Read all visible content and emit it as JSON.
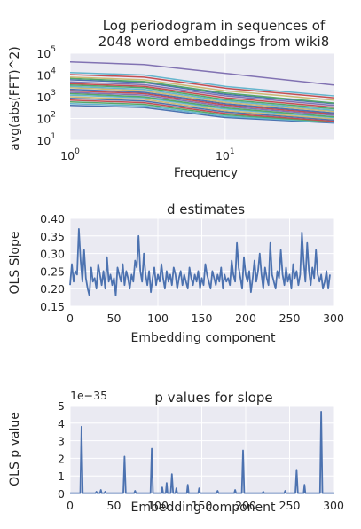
{
  "colors": {
    "panel_bg": "#eaeaf2",
    "grid": "#ffffff",
    "main_line": "#4c72b0",
    "palette": [
      "#4c72b0",
      "#55a868",
      "#c44e52",
      "#8172b2",
      "#ccb974",
      "#64b5cd"
    ]
  },
  "chart_data": [
    {
      "type": "line",
      "title_lines": [
        "Log periodogram in sequences of",
        "2048 word embeddings from wiki8"
      ],
      "xlabel": "Frequency",
      "ylabel": "avg(abs(FFT)^2)",
      "xscale": "log",
      "yscale": "log",
      "xlim": [
        1,
        50
      ],
      "ylim": [
        10,
        100000
      ],
      "xtick_labels": [
        {
          "mantissa": "10",
          "exp": "0",
          "value": 1
        },
        {
          "mantissa": "10",
          "exp": "1",
          "value": 10
        }
      ],
      "ytick_labels": [
        {
          "mantissa": "10",
          "exp": "1",
          "value": 10
        },
        {
          "mantissa": "10",
          "exp": "2",
          "value": 100
        },
        {
          "mantissa": "10",
          "exp": "3",
          "value": 1000
        },
        {
          "mantissa": "10",
          "exp": "4",
          "value": 10000
        },
        {
          "mantissa": "10",
          "exp": "5",
          "value": 100000
        }
      ],
      "grid": true,
      "x": [
        1,
        3,
        10,
        50
      ],
      "series": [
        {
          "color": "#8172b2",
          "values": [
            40000,
            30000,
            12000,
            3500
          ]
        },
        {
          "color": "#64b5cd",
          "values": [
            13000,
            10000,
            3000,
            1100
          ]
        },
        {
          "color": "#c44e52",
          "values": [
            10500,
            8000,
            2500,
            900
          ]
        },
        {
          "color": "#ccb974",
          "values": [
            8000,
            6000,
            1900,
            700
          ]
        },
        {
          "color": "#55a868",
          "values": [
            7000,
            5000,
            1500,
            520
          ]
        },
        {
          "color": "#4c72b0",
          "values": [
            6000,
            4500,
            1300,
            480
          ]
        },
        {
          "color": "#8172b2",
          "values": [
            4800,
            3600,
            1100,
            400
          ]
        },
        {
          "color": "#c44e52",
          "values": [
            4000,
            3000,
            900,
            330
          ]
        },
        {
          "color": "#55a868",
          "values": [
            3500,
            2600,
            750,
            280
          ]
        },
        {
          "color": "#64b5cd",
          "values": [
            3000,
            2200,
            650,
            240
          ]
        },
        {
          "color": "#ccb974",
          "values": [
            2600,
            1900,
            560,
            210
          ]
        },
        {
          "color": "#4c72b0",
          "values": [
            2200,
            1600,
            480,
            180
          ]
        },
        {
          "color": "#c44e52",
          "values": [
            1900,
            1400,
            420,
            160
          ]
        },
        {
          "color": "#8172b2",
          "values": [
            1600,
            1200,
            360,
            140
          ]
        },
        {
          "color": "#55a868",
          "values": [
            1400,
            1000,
            310,
            120
          ]
        },
        {
          "color": "#64b5cd",
          "values": [
            1200,
            900,
            270,
            110
          ]
        },
        {
          "color": "#ccb974",
          "values": [
            1000,
            760,
            230,
            95
          ]
        },
        {
          "color": "#4c72b0",
          "values": [
            850,
            640,
            200,
            85
          ]
        },
        {
          "color": "#c44e52",
          "values": [
            700,
            540,
            170,
            75
          ]
        },
        {
          "color": "#55a868",
          "values": [
            580,
            450,
            145,
            70
          ]
        },
        {
          "color": "#64b5cd",
          "values": [
            480,
            380,
            125,
            66
          ]
        },
        {
          "color": "#4c72b0",
          "values": [
            400,
            320,
            110,
            62
          ]
        }
      ]
    },
    {
      "type": "line",
      "title": "d estimates",
      "xlabel": "Embedding component",
      "ylabel": "OLS Slope",
      "xlim": [
        0,
        300
      ],
      "ylim": [
        0.15,
        0.4
      ],
      "xtick_labels": [
        "0",
        "50",
        "100",
        "150",
        "200",
        "250",
        "300"
      ],
      "ytick_labels": [
        "0.15",
        "0.20",
        "0.25",
        "0.30",
        "0.35",
        "0.40"
      ],
      "grid": true,
      "x_start": 0,
      "x_step": 2,
      "values": [
        0.21,
        0.27,
        0.22,
        0.25,
        0.24,
        0.37,
        0.28,
        0.22,
        0.31,
        0.23,
        0.2,
        0.18,
        0.26,
        0.22,
        0.23,
        0.2,
        0.27,
        0.24,
        0.21,
        0.25,
        0.2,
        0.29,
        0.22,
        0.24,
        0.21,
        0.23,
        0.18,
        0.26,
        0.24,
        0.22,
        0.27,
        0.21,
        0.25,
        0.23,
        0.2,
        0.24,
        0.22,
        0.28,
        0.26,
        0.35,
        0.25,
        0.22,
        0.3,
        0.24,
        0.21,
        0.25,
        0.19,
        0.23,
        0.26,
        0.21,
        0.24,
        0.22,
        0.27,
        0.23,
        0.2,
        0.25,
        0.22,
        0.24,
        0.21,
        0.26,
        0.24,
        0.2,
        0.23,
        0.25,
        0.21,
        0.24,
        0.22,
        0.2,
        0.26,
        0.23,
        0.21,
        0.24,
        0.22,
        0.25,
        0.2,
        0.23,
        0.21,
        0.27,
        0.24,
        0.22,
        0.2,
        0.25,
        0.23,
        0.21,
        0.24,
        0.22,
        0.26,
        0.2,
        0.24,
        0.22,
        0.23,
        0.21,
        0.28,
        0.24,
        0.22,
        0.33,
        0.26,
        0.23,
        0.2,
        0.29,
        0.24,
        0.22,
        0.25,
        0.19,
        0.23,
        0.28,
        0.22,
        0.25,
        0.3,
        0.24,
        0.2,
        0.26,
        0.23,
        0.21,
        0.33,
        0.24,
        0.22,
        0.2,
        0.25,
        0.23,
        0.31,
        0.24,
        0.21,
        0.26,
        0.22,
        0.24,
        0.2,
        0.27,
        0.23,
        0.25,
        0.21,
        0.24,
        0.36,
        0.28,
        0.22,
        0.33,
        0.25,
        0.21,
        0.26,
        0.23,
        0.31,
        0.24,
        0.22,
        0.24,
        0.2,
        0.22,
        0.25,
        0.2,
        0.24
      ]
    },
    {
      "type": "line",
      "title": "p values for slope",
      "xlabel": "Embedding component",
      "ylabel": "OLS p value",
      "offset_text": "1e−35",
      "xlim": [
        0,
        300
      ],
      "ylim": [
        0,
        5
      ],
      "xtick_labels": [
        "0",
        "50",
        "100",
        "150",
        "200",
        "250",
        "300"
      ],
      "ytick_labels": [
        "0",
        "1",
        "2",
        "3",
        "4",
        "5"
      ],
      "grid": true,
      "baseline": 0.02,
      "peaks": [
        {
          "x": 13,
          "value": 3.8
        },
        {
          "x": 30,
          "value": 0.1
        },
        {
          "x": 35,
          "value": 0.2
        },
        {
          "x": 40,
          "value": 0.1
        },
        {
          "x": 62,
          "value": 2.1
        },
        {
          "x": 74,
          "value": 0.15
        },
        {
          "x": 93,
          "value": 2.55
        },
        {
          "x": 105,
          "value": 0.35
        },
        {
          "x": 110,
          "value": 0.6
        },
        {
          "x": 116,
          "value": 1.1
        },
        {
          "x": 121,
          "value": 0.3
        },
        {
          "x": 134,
          "value": 0.5
        },
        {
          "x": 147,
          "value": 0.3
        },
        {
          "x": 168,
          "value": 0.15
        },
        {
          "x": 188,
          "value": 0.2
        },
        {
          "x": 197,
          "value": 2.45
        },
        {
          "x": 220,
          "value": 0.1
        },
        {
          "x": 245,
          "value": 0.15
        },
        {
          "x": 258,
          "value": 1.35
        },
        {
          "x": 267,
          "value": 0.5
        },
        {
          "x": 286,
          "value": 4.65
        }
      ]
    }
  ]
}
